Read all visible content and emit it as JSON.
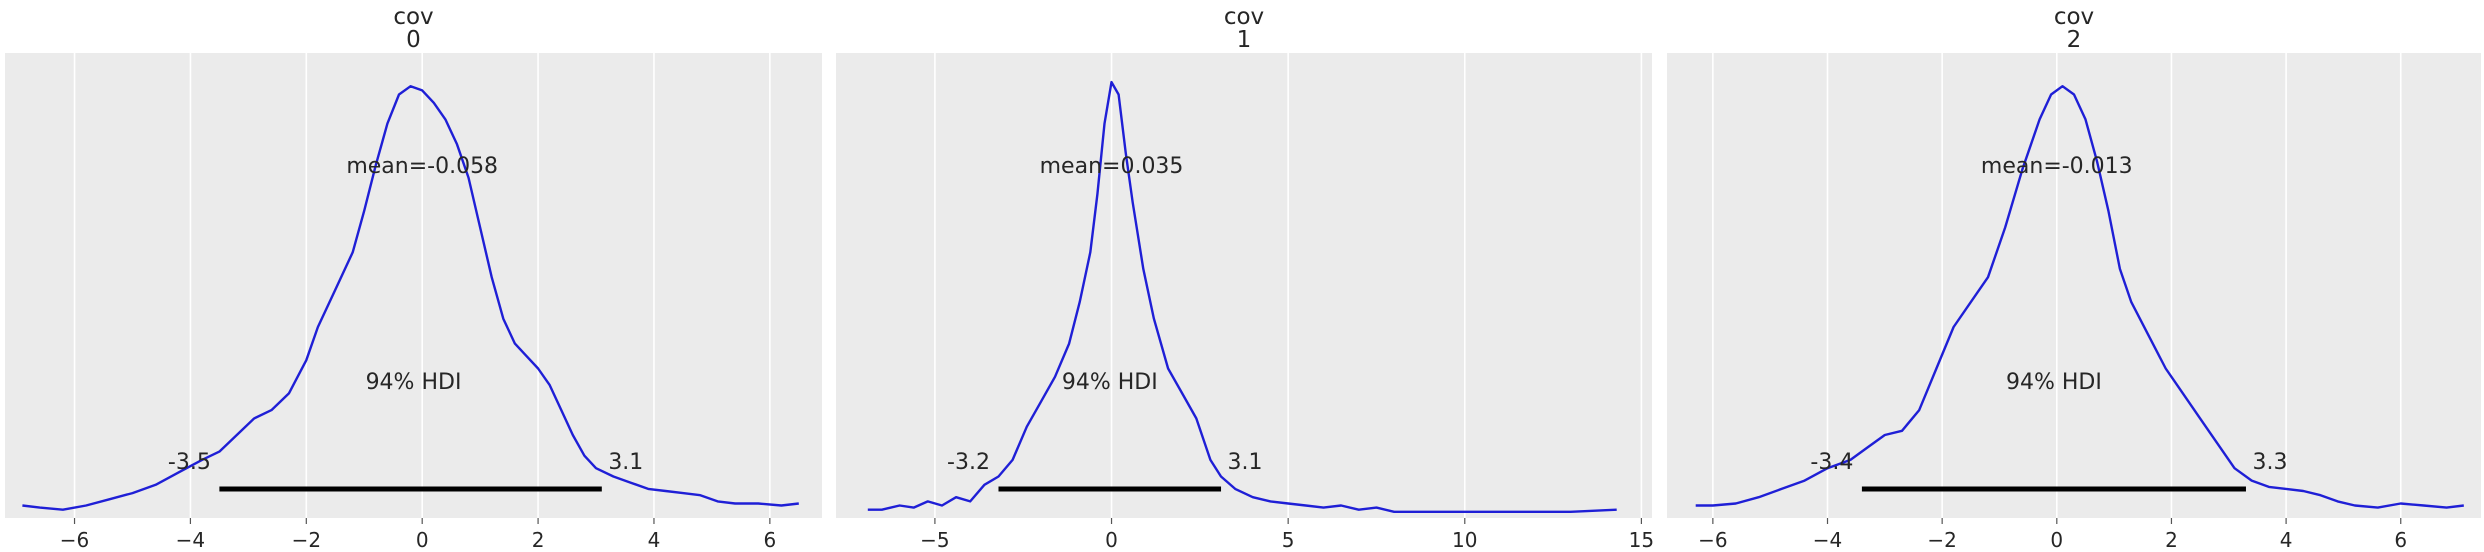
{
  "chart_data": [
    {
      "type": "line",
      "title": [
        "cov",
        "0"
      ],
      "xlim": [
        -7.2,
        6.9
      ],
      "ylim": [
        0,
        1.12
      ],
      "xticks": [
        -6,
        -4,
        -2,
        0,
        2,
        4,
        6
      ],
      "xtick_labels": [
        "−6",
        "−4",
        "−2",
        "0",
        "2",
        "4",
        "6"
      ],
      "grid": true,
      "series": [
        {
          "x": [
            -6.9,
            -6.6,
            -6.2,
            -5.8,
            -5.4,
            -5.0,
            -4.6,
            -4.2,
            -3.8,
            -3.5,
            -3.2,
            -2.9,
            -2.6,
            -2.3,
            -2.0,
            -1.8,
            -1.5,
            -1.2,
            -1.0,
            -0.8,
            -0.6,
            -0.4,
            -0.2,
            0.0,
            0.2,
            0.4,
            0.6,
            0.8,
            1.0,
            1.2,
            1.4,
            1.6,
            1.8,
            2.0,
            2.2,
            2.4,
            2.6,
            2.8,
            3.0,
            3.3,
            3.6,
            3.9,
            4.2,
            4.5,
            4.8,
            5.1,
            5.4,
            5.8,
            6.2,
            6.5
          ],
          "y": [
            0.03,
            0.025,
            0.02,
            0.03,
            0.045,
            0.06,
            0.08,
            0.11,
            0.14,
            0.16,
            0.2,
            0.24,
            0.26,
            0.3,
            0.38,
            0.46,
            0.55,
            0.64,
            0.74,
            0.85,
            0.95,
            1.02,
            1.04,
            1.03,
            1.0,
            0.96,
            0.9,
            0.82,
            0.7,
            0.58,
            0.48,
            0.42,
            0.39,
            0.36,
            0.32,
            0.26,
            0.2,
            0.15,
            0.12,
            0.1,
            0.085,
            0.07,
            0.065,
            0.06,
            0.055,
            0.04,
            0.035,
            0.035,
            0.03,
            0.035
          ]
        }
      ],
      "mean_label": "mean=-0.058",
      "mean_pos": [
        0.0,
        0.85
      ],
      "hdi": [
        -3.5,
        3.1
      ],
      "hdi_low_label": "-3.5",
      "hdi_high_label": "3.1",
      "hdi_label": "94% HDI",
      "hdi_label_pos": [
        -0.15,
        0.33
      ]
    },
    {
      "type": "line",
      "title": [
        "cov",
        "1"
      ],
      "xlim": [
        -7.8,
        15.3
      ],
      "ylim": [
        0,
        1.12
      ],
      "xticks": [
        -5,
        0,
        5,
        10,
        15
      ],
      "xtick_labels": [
        "−5",
        "0",
        "5",
        "10",
        "15"
      ],
      "grid": true,
      "series": [
        {
          "x": [
            -6.9,
            -6.5,
            -6.0,
            -5.6,
            -5.2,
            -4.8,
            -4.4,
            -4.0,
            -3.6,
            -3.2,
            -2.8,
            -2.4,
            -2.0,
            -1.6,
            -1.2,
            -0.9,
            -0.6,
            -0.4,
            -0.2,
            0.0,
            0.2,
            0.4,
            0.6,
            0.9,
            1.2,
            1.6,
            2.0,
            2.4,
            2.8,
            3.1,
            3.5,
            4.0,
            4.5,
            5.0,
            5.5,
            6.0,
            6.5,
            7.0,
            7.5,
            8.0,
            9.0,
            10.0,
            11.0,
            12.0,
            13.0,
            14.3
          ],
          "y": [
            0.02,
            0.02,
            0.03,
            0.025,
            0.04,
            0.03,
            0.05,
            0.04,
            0.08,
            0.1,
            0.14,
            0.22,
            0.28,
            0.34,
            0.42,
            0.52,
            0.64,
            0.78,
            0.95,
            1.05,
            1.02,
            0.88,
            0.76,
            0.6,
            0.48,
            0.36,
            0.3,
            0.24,
            0.14,
            0.1,
            0.07,
            0.05,
            0.04,
            0.035,
            0.03,
            0.025,
            0.03,
            0.02,
            0.025,
            0.015,
            0.015,
            0.015,
            0.015,
            0.015,
            0.015,
            0.02
          ]
        }
      ],
      "mean_label": "mean=0.035",
      "mean_pos": [
        0.0,
        0.85
      ],
      "hdi": [
        -3.2,
        3.1
      ],
      "hdi_low_label": "-3.2",
      "hdi_high_label": "3.1",
      "hdi_label": "94% HDI",
      "hdi_label_pos": [
        -0.05,
        0.33
      ]
    },
    {
      "type": "line",
      "title": [
        "cov",
        "2"
      ],
      "xlim": [
        -6.8,
        7.4
      ],
      "ylim": [
        0,
        1.12
      ],
      "xticks": [
        -6,
        -4,
        -2,
        0,
        2,
        4,
        6
      ],
      "xtick_labels": [
        "−6",
        "−4",
        "−2",
        "0",
        "2",
        "4",
        "6"
      ],
      "grid": true,
      "series": [
        {
          "x": [
            -6.3,
            -6.0,
            -5.6,
            -5.2,
            -4.8,
            -4.4,
            -4.0,
            -3.6,
            -3.3,
            -3.0,
            -2.7,
            -2.4,
            -2.1,
            -1.8,
            -1.5,
            -1.2,
            -0.9,
            -0.6,
            -0.3,
            -0.1,
            0.1,
            0.3,
            0.5,
            0.7,
            0.9,
            1.1,
            1.3,
            1.6,
            1.9,
            2.2,
            2.5,
            2.8,
            3.1,
            3.4,
            3.7,
            4.0,
            4.3,
            4.6,
            4.9,
            5.2,
            5.6,
            6.0,
            6.4,
            6.8,
            7.1
          ],
          "y": [
            0.03,
            0.03,
            0.035,
            0.05,
            0.07,
            0.09,
            0.12,
            0.14,
            0.17,
            0.2,
            0.21,
            0.26,
            0.36,
            0.46,
            0.52,
            0.58,
            0.7,
            0.84,
            0.96,
            1.02,
            1.04,
            1.02,
            0.96,
            0.86,
            0.74,
            0.6,
            0.52,
            0.44,
            0.36,
            0.3,
            0.24,
            0.18,
            0.12,
            0.09,
            0.075,
            0.07,
            0.065,
            0.055,
            0.04,
            0.03,
            0.025,
            0.035,
            0.03,
            0.025,
            0.03
          ]
        }
      ],
      "mean_label": "mean=-0.013",
      "mean_pos": [
        0.0,
        0.85
      ],
      "hdi": [
        -3.4,
        3.3
      ],
      "hdi_low_label": "-3.4",
      "hdi_high_label": "3.3",
      "hdi_label": "94% HDI",
      "hdi_label_pos": [
        -0.05,
        0.33
      ]
    }
  ]
}
